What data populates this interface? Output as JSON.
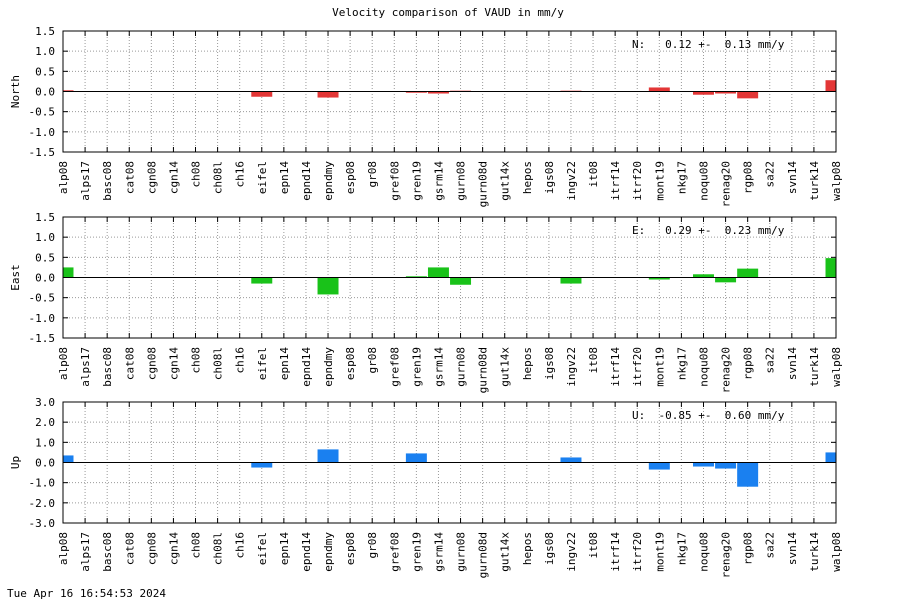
{
  "title": "Velocity comparison of VAUD in mm/y",
  "timestamp": "Tue Apr 16 16:54:53 2024",
  "colors": {
    "north": "#e33636",
    "east": "#19c219",
    "up": "#1a80f0",
    "grid": "#9a9a9a",
    "axis": "#000000"
  },
  "chart_data": [
    {
      "type": "bar",
      "ylabel": "North",
      "stat_label": "N:   0.12 +-  0.13 mm/y",
      "ylim": [
        -1.5,
        1.5
      ],
      "yticks": [
        -1.5,
        -1.0,
        -0.5,
        0.0,
        0.5,
        1.0,
        1.5
      ],
      "ytick_labels": [
        "-1.5",
        "-1.0",
        "-0.5",
        "0.0",
        "0.5",
        "1.0",
        "1.5"
      ],
      "categories": [
        "alp08",
        "alps17",
        "basc08",
        "cat08",
        "cgn08",
        "cgn14",
        "ch08",
        "ch08l",
        "ch16",
        "eifel",
        "epn14",
        "epnd14",
        "epndmy",
        "esp08",
        "gr08",
        "gref08",
        "gren19",
        "gsrm14",
        "gurn08",
        "gurn08d",
        "gut14x",
        "hepos",
        "igs08",
        "ingv22",
        "it08",
        "itrf14",
        "itrf20",
        "mont19",
        "nkg17",
        "noqu08",
        "renag20",
        "rgp08",
        "sa22",
        "svn14",
        "turk14",
        "walp08"
      ],
      "values": [
        0.03,
        0,
        0,
        0,
        0,
        0,
        0,
        0,
        0,
        -0.13,
        0,
        0,
        -0.15,
        0,
        0,
        0,
        -0.03,
        -0.05,
        0.02,
        0,
        0,
        0,
        0,
        0.02,
        0,
        0,
        0,
        0.1,
        0,
        -0.08,
        -0.05,
        -0.17,
        0,
        0,
        0,
        0.28
      ]
    },
    {
      "type": "bar",
      "ylabel": "East",
      "stat_label": "E:   0.29 +-  0.23 mm/y",
      "ylim": [
        -1.5,
        1.5
      ],
      "yticks": [
        -1.5,
        -1.0,
        -0.5,
        0.0,
        0.5,
        1.0,
        1.5
      ],
      "ytick_labels": [
        "-1.5",
        "-1.0",
        "-0.5",
        "0.0",
        "0.5",
        "1.0",
        "1.5"
      ],
      "categories": [
        "alp08",
        "alps17",
        "basc08",
        "cat08",
        "cgn08",
        "cgn14",
        "ch08",
        "ch08l",
        "ch16",
        "eifel",
        "epn14",
        "epnd14",
        "epndmy",
        "esp08",
        "gr08",
        "gref08",
        "gren19",
        "gsrm14",
        "gurn08",
        "gurn08d",
        "gut14x",
        "hepos",
        "igs08",
        "ingv22",
        "it08",
        "itrf14",
        "itrf20",
        "mont19",
        "nkg17",
        "noqu08",
        "renag20",
        "rgp08",
        "sa22",
        "svn14",
        "turk14",
        "walp08"
      ],
      "values": [
        0.25,
        0,
        0,
        0,
        0,
        0,
        0,
        0,
        0,
        -0.15,
        0,
        0,
        -0.42,
        0,
        0,
        0,
        0.03,
        0.25,
        -0.18,
        0,
        0,
        0,
        0,
        -0.15,
        0,
        0,
        0,
        -0.05,
        0,
        0.08,
        -0.12,
        0.22,
        0,
        0,
        0,
        0.48
      ]
    },
    {
      "type": "bar",
      "ylabel": "Up",
      "stat_label": "U:  -0.85 +-  0.60 mm/y",
      "ylim": [
        -3.0,
        3.0
      ],
      "yticks": [
        -3.0,
        -2.0,
        -1.0,
        0.0,
        1.0,
        2.0,
        3.0
      ],
      "ytick_labels": [
        "-3.0",
        "-2.0",
        "-1.0",
        "0.0",
        "1.0",
        "2.0",
        "3.0"
      ],
      "categories": [
        "alp08",
        "alps17",
        "basc08",
        "cat08",
        "cgn08",
        "cgn14",
        "ch08",
        "ch08l",
        "ch16",
        "eifel",
        "epn14",
        "epnd14",
        "epndmy",
        "esp08",
        "gr08",
        "gref08",
        "gren19",
        "gsrm14",
        "gurn08",
        "gurn08d",
        "gut14x",
        "hepos",
        "igs08",
        "ingv22",
        "it08",
        "itrf14",
        "itrf20",
        "mont19",
        "nkg17",
        "noqu08",
        "renag20",
        "rgp08",
        "sa22",
        "svn14",
        "turk14",
        "walp08"
      ],
      "values": [
        0.35,
        0,
        0,
        0,
        0,
        0,
        0,
        0,
        0,
        -0.25,
        0,
        0,
        0.65,
        0,
        0,
        0,
        0.45,
        0,
        0,
        0,
        0,
        0,
        0,
        0.25,
        0,
        0,
        0,
        -0.35,
        0,
        -0.2,
        -0.3,
        -1.2,
        0,
        0,
        0,
        0.5
      ]
    }
  ]
}
